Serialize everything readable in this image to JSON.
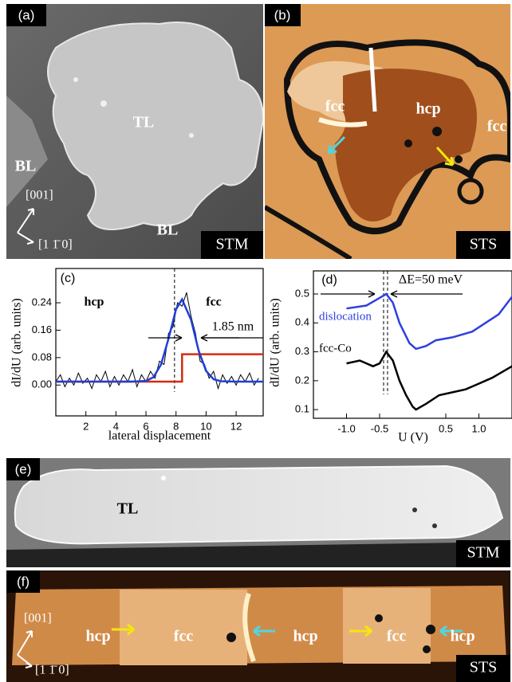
{
  "chart_data": [
    {
      "type": "line",
      "panel_label": "(c)",
      "xlabel": "lateral displacement",
      "ylabel": "dI/dU (arb. units)",
      "xlim": [
        0,
        13.8
      ],
      "xticks": [
        2,
        4,
        6,
        8,
        10,
        12
      ],
      "ylim": [
        -0.09,
        0.34
      ],
      "yticks": [
        {
          "value": 0,
          "label": "0.00"
        },
        {
          "value": 0.08,
          "label": "0.08"
        },
        {
          "value": 0.16,
          "label": "0.16"
        },
        {
          "value": 0.24,
          "label": "0.24"
        }
      ],
      "vlines": [
        7.9
      ],
      "annotations": [
        "hcp",
        "fcc",
        "1.85 nm"
      ],
      "series": [
        {
          "color": "#000000",
          "x": [
            0,
            0.3,
            0.6,
            0.9,
            1.2,
            1.5,
            1.8,
            2.1,
            2.4,
            2.7,
            3.0,
            3.3,
            3.6,
            3.9,
            4.2,
            4.5,
            4.8,
            5.1,
            5.4,
            5.7,
            6.0,
            6.3,
            6.6,
            6.9,
            7.2,
            7.5,
            7.8,
            8.1,
            8.4,
            8.7,
            9.0,
            9.3,
            9.6,
            9.9,
            10.2,
            10.5,
            10.8,
            11.1,
            11.4,
            11.7,
            12.0,
            12.3,
            12.6,
            12.9,
            13.2,
            13.5
          ],
          "values": [
            0.01,
            0.03,
            -0.005,
            0.02,
            0.0,
            0.035,
            0.005,
            0.02,
            -0.01,
            0.03,
            0.01,
            0.04,
            -0.005,
            0.025,
            0.0,
            0.03,
            0.01,
            0.045,
            -0.005,
            0.03,
            0.01,
            0.04,
            0.02,
            0.07,
            0.06,
            0.15,
            0.17,
            0.24,
            0.23,
            0.27,
            0.2,
            0.15,
            0.07,
            0.06,
            0.02,
            0.04,
            -0.01,
            0.03,
            0.005,
            0.025,
            0.0,
            0.03,
            0.01,
            0.035,
            0.0,
            0.02
          ]
        },
        {
          "color": "#d62a10",
          "x": [
            0,
            8.4,
            8.4,
            13.8
          ],
          "values": [
            0.01,
            0.01,
            0.09,
            0.09
          ]
        },
        {
          "color": "#1f3fd8",
          "x": [
            0,
            2,
            4,
            5,
            6,
            6.5,
            7,
            7.5,
            8,
            8.4,
            9,
            9.5,
            10,
            10.5,
            11,
            12,
            13.8
          ],
          "values": [
            0.01,
            0.01,
            0.01,
            0.01,
            0.012,
            0.023,
            0.06,
            0.135,
            0.221,
            0.25,
            0.19,
            0.101,
            0.041,
            0.017,
            0.011,
            0.01,
            0.01
          ]
        }
      ]
    },
    {
      "type": "line",
      "panel_label": "(d)",
      "xlabel": "U (V)",
      "ylabel": "dI/dU (arb. units)",
      "xlim": [
        -1.5,
        1.5
      ],
      "xticks": [
        {
          "value": -1,
          "label": "-1.0"
        },
        {
          "value": -0.5,
          "label": "-0.5"
        },
        0.5,
        {
          "value": 1,
          "label": "1.0"
        }
      ],
      "ylim": [
        0.07,
        0.58
      ],
      "yticks": [
        0.1,
        0.2,
        0.3,
        0.4,
        0.5
      ],
      "vlines": [
        -0.44,
        -0.38
      ],
      "annotations": [
        "ΔE=50 meV"
      ],
      "series": [
        {
          "name": "dislocation",
          "color": "#2f3fe0",
          "x": [
            -1.0,
            -0.7,
            -0.55,
            -0.4,
            -0.3,
            -0.2,
            -0.05,
            0.05,
            0.2,
            0.35,
            0.6,
            0.9,
            1.1,
            1.3,
            1.5
          ],
          "values": [
            0.45,
            0.46,
            0.48,
            0.5,
            0.47,
            0.4,
            0.33,
            0.31,
            0.32,
            0.34,
            0.35,
            0.37,
            0.4,
            0.43,
            0.49
          ]
        },
        {
          "name": "fcc-Co",
          "color": "#000000",
          "x": [
            -1.0,
            -0.8,
            -0.6,
            -0.5,
            -0.4,
            -0.3,
            -0.2,
            -0.1,
            0,
            0.05,
            0.2,
            0.4,
            0.6,
            0.8,
            1.0,
            1.2,
            1.5
          ],
          "values": [
            0.26,
            0.27,
            0.25,
            0.26,
            0.3,
            0.27,
            0.2,
            0.15,
            0.11,
            0.1,
            0.12,
            0.15,
            0.16,
            0.17,
            0.19,
            0.21,
            0.25
          ]
        }
      ]
    }
  ],
  "panels": {
    "a": {
      "label": "(a)",
      "technique": "STM",
      "texts": [
        "TL",
        "BL",
        "BL"
      ],
      "axes": [
        "[001]",
        "[1 1̄ 0]"
      ]
    },
    "b": {
      "label": "(b)",
      "technique": "STS",
      "texts": [
        "fcc",
        "hcp",
        "fcc"
      ]
    },
    "e": {
      "label": "(e)",
      "technique": "STM",
      "texts": [
        "TL"
      ]
    },
    "f": {
      "label": "(f)",
      "technique": "STS",
      "texts": [
        "hcp",
        "fcc",
        "hcp",
        "fcc",
        "hcp"
      ],
      "axes": [
        "[001]",
        "[1 1̄ 0]"
      ]
    }
  }
}
